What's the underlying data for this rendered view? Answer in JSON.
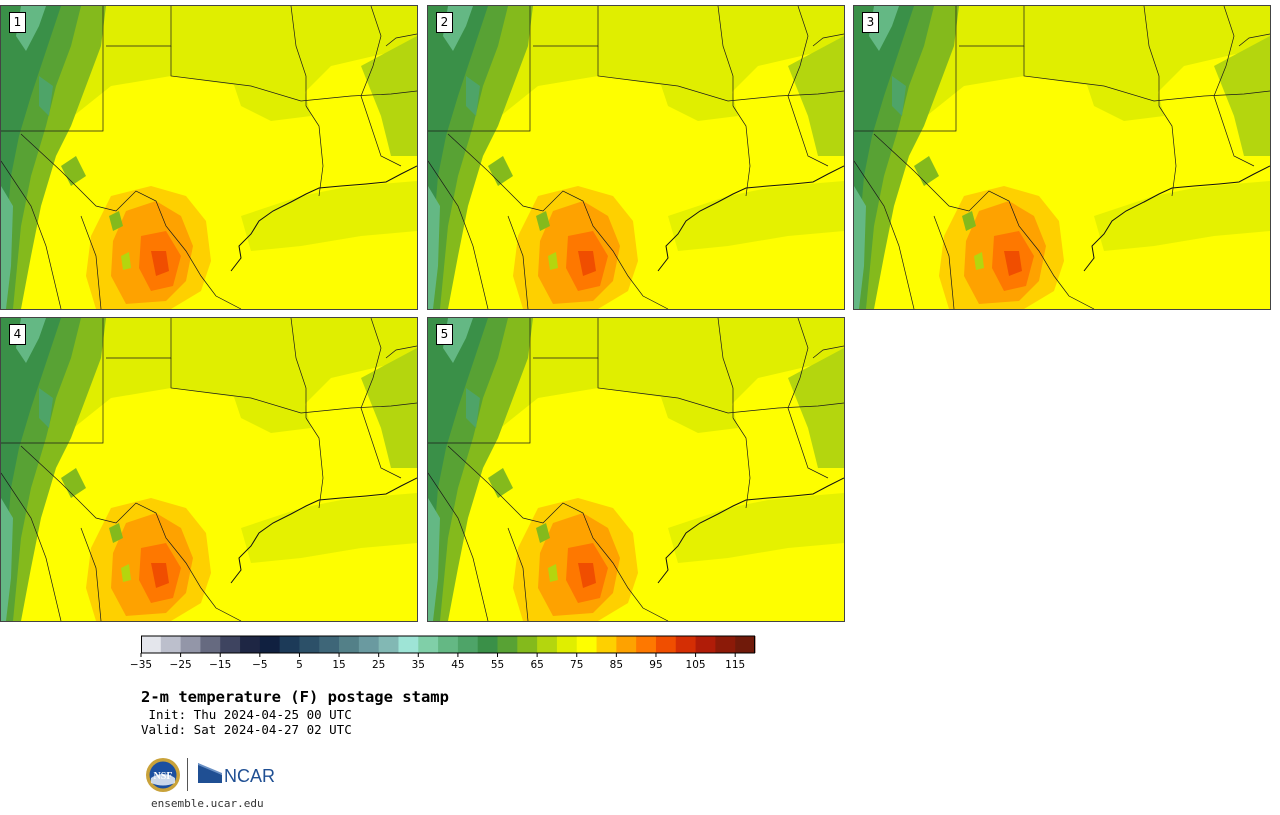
{
  "panels": [
    {
      "label": "1"
    },
    {
      "label": "2"
    },
    {
      "label": "3"
    },
    {
      "label": "4"
    },
    {
      "label": "5"
    }
  ],
  "colorbar": {
    "levels": [
      -35,
      -30,
      -25,
      -20,
      -15,
      -10,
      -5,
      0,
      5,
      10,
      15,
      20,
      25,
      30,
      35,
      40,
      45,
      50,
      55,
      60,
      65,
      70,
      75,
      80,
      85,
      90,
      95,
      100,
      105,
      110,
      115,
      120
    ],
    "colors": [
      "#e4e6ec",
      "#bcbfcc",
      "#9396a8",
      "#666a80",
      "#3e4460",
      "#1e2644",
      "#102040",
      "#1c3a58",
      "#2c5068",
      "#3e6678",
      "#538088",
      "#6a9aa0",
      "#82b8b4",
      "#9ee4d6",
      "#80cfa8",
      "#64b884",
      "#4ea468",
      "#3a9048",
      "#58a234",
      "#84ba1c",
      "#b4d60e",
      "#e0ee00",
      "#fefe00",
      "#fed000",
      "#fea200",
      "#fe7800",
      "#f04e00",
      "#d42e04",
      "#b01c08",
      "#8c1a08",
      "#701a0a"
    ],
    "tick_labels": [
      "−35",
      "−25",
      "−15",
      "−5",
      "5",
      "15",
      "25",
      "35",
      "45",
      "55",
      "65",
      "75",
      "85",
      "95",
      "105",
      "115"
    ]
  },
  "title": "2-m temperature (F) postage stamp",
  "init_line": " Init: Thu 2024-04-25 00 UTC",
  "valid_line": "Valid: Sat 2024-04-27 02 UTC",
  "logos": {
    "nsf": "NSF",
    "ncar": "NCAR"
  },
  "website": "ensemble.ucar.edu"
}
